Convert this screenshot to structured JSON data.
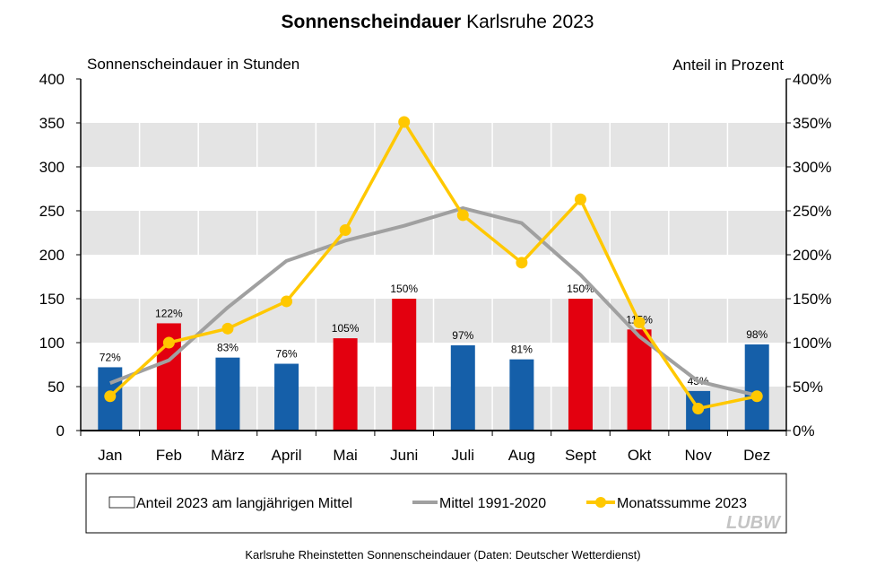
{
  "chart_data": {
    "type": "bar+line",
    "title_bold": "Sonnenscheindauer",
    "title_rest": "Karlsruhe 2023",
    "ylabel_left": "Sonnenscheindauer  in Stunden",
    "ylabel_right": "Anteil in Prozent",
    "categories": [
      "Jan",
      "Feb",
      "März",
      "April",
      "Mai",
      "Juni",
      "Juli",
      "Aug",
      "Sept",
      "Okt",
      "Nov",
      "Dez"
    ],
    "ylim_left": [
      0,
      400
    ],
    "ylim_right": [
      0,
      400
    ],
    "yticks_left": [
      "0",
      "50",
      "100",
      "150",
      "200",
      "250",
      "300",
      "350",
      "400"
    ],
    "yticks_right": [
      "0%",
      "50%",
      "100%",
      "150%",
      "200%",
      "250%",
      "300%",
      "350%",
      "400%"
    ],
    "grid": "alternating horizontal bands",
    "legend_position": "bottom",
    "series": [
      {
        "name": "Anteil 2023 am langjährigen Mittel",
        "type": "bar",
        "axis": "right",
        "values": [
          72,
          122,
          83,
          76,
          105,
          150,
          97,
          81,
          150,
          115,
          45,
          98
        ],
        "labels": [
          "72%",
          "122%",
          "83%",
          "76%",
          "105%",
          "150%",
          "97%",
          "81%",
          "150%",
          "115%",
          "45%",
          "98%"
        ],
        "color_below": "#155fa9",
        "color_above": "#e3000f"
      },
      {
        "name": "Mittel 1991-2020",
        "type": "line",
        "axis": "left",
        "color": "#a0a0a0",
        "values": [
          54,
          80,
          140,
          193,
          216,
          233,
          253,
          236,
          177,
          107,
          56,
          40
        ]
      },
      {
        "name": "Monatssumme 2023",
        "type": "line",
        "axis": "left",
        "color": "#ffc800",
        "markers": true,
        "values": [
          39,
          100,
          116,
          147,
          228,
          351,
          245,
          191,
          263,
          123,
          25,
          39
        ]
      }
    ],
    "footnote": "Karlsruhe Rheinstetten Sonnenscheindauer (Daten: Deutscher Wetterdienst)",
    "logo": "LUBW"
  }
}
